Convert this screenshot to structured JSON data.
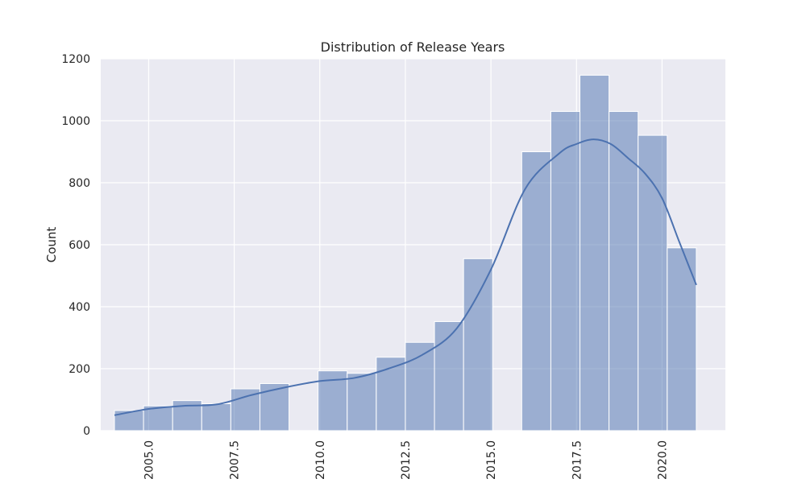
{
  "chart_data": {
    "type": "bar",
    "subtype": "histogram with kde",
    "title": "Distribution of Release Years",
    "xlabel": "",
    "ylabel": "Count",
    "xlim": [
      2003.6,
      2021.85
    ],
    "ylim": [
      0,
      1200
    ],
    "x_ticks": [
      2005.0,
      2007.5,
      2010.0,
      2012.5,
      2015.0,
      2017.5,
      2020.0
    ],
    "x_tick_labels": [
      "2005.0",
      "2007.5",
      "2010.0",
      "2012.5",
      "2015.0",
      "2017.5",
      "2020.0"
    ],
    "y_ticks": [
      0,
      200,
      400,
      600,
      800,
      1000,
      1200
    ],
    "y_tick_labels": [
      "0",
      "200",
      "400",
      "600",
      "800",
      "1000",
      "1200"
    ],
    "bin_edges": [
      2004.0,
      2004.85,
      2005.7,
      2006.55,
      2007.4,
      2008.25,
      2009.1,
      2009.95,
      2010.8,
      2011.65,
      2012.5,
      2013.35,
      2014.2,
      2015.05,
      2015.9,
      2016.75,
      2017.6,
      2018.45,
      2019.3,
      2020.15,
      2021.0
    ],
    "values": [
      65,
      80,
      97,
      87,
      135,
      152,
      0,
      193,
      185,
      237,
      285,
      352,
      555,
      0,
      900,
      1030,
      1147,
      1030,
      953,
      590
    ],
    "kde": {
      "x": [
        2004.0,
        2005.0,
        2006.0,
        2007.0,
        2008.0,
        2009.0,
        2010.0,
        2011.0,
        2012.0,
        2013.0,
        2014.0,
        2015.0,
        2016.0,
        2017.0,
        2017.5,
        2018.0,
        2018.5,
        2019.0,
        2019.5,
        2020.0,
        2020.5,
        2021.0
      ],
      "y": [
        50,
        70,
        80,
        85,
        115,
        140,
        160,
        170,
        200,
        245,
        330,
        520,
        780,
        895,
        925,
        940,
        925,
        880,
        830,
        750,
        610,
        470
      ]
    },
    "grid": true,
    "legend": "none",
    "colors": {
      "background": "#eaeaf2",
      "grid": "#ffffff",
      "bar_fill": "#4c72b0",
      "bar_opacity": 0.5,
      "kde_line": "#4c72b0"
    }
  }
}
